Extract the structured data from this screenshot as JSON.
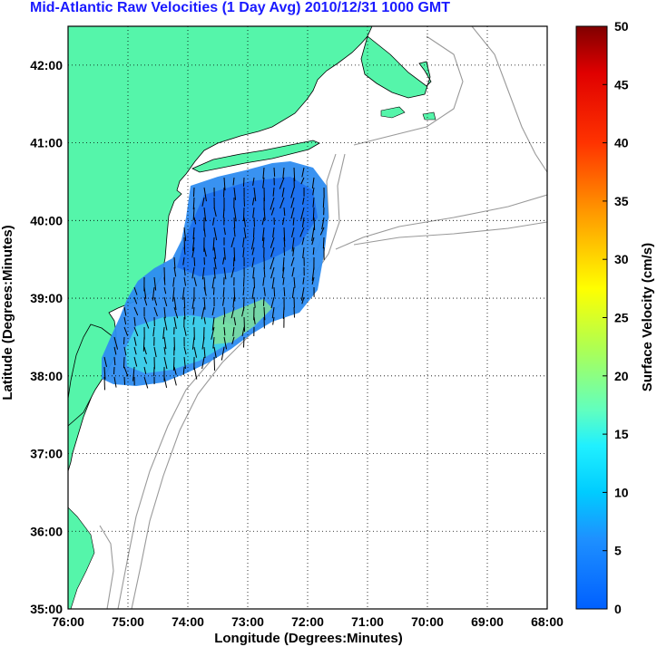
{
  "title": "Mid-Atlantic Raw Velocities (1 Day Avg) 2010/12/31 1000 GMT",
  "map": {
    "xlabel": "Longitude (Degrees:Minutes)",
    "ylabel": "Latitude (Degrees:Minutes)",
    "lon_range": [
      -76,
      -68
    ],
    "lat_range": [
      35,
      42.5
    ],
    "lon_ticks": [
      "76:00",
      "75:00",
      "74:00",
      "73:00",
      "72:00",
      "71:00",
      "70:00",
      "69:00",
      "68:00"
    ],
    "lat_ticks": [
      "35:00",
      "36:00",
      "37:00",
      "38:00",
      "39:00",
      "40:00",
      "41:00",
      "42:00"
    ],
    "grid": "dotted",
    "land_color": "#55f5aa",
    "ocean_color": "#ffffff",
    "bathymetry_color": "#999999"
  },
  "colorbar": {
    "label": "Surface Velocity (cm/s)",
    "ticks": [
      "0",
      "5",
      "10",
      "15",
      "20",
      "25",
      "30",
      "35",
      "40",
      "45",
      "50"
    ],
    "range": [
      0,
      50
    ],
    "colormap": "jet"
  }
}
